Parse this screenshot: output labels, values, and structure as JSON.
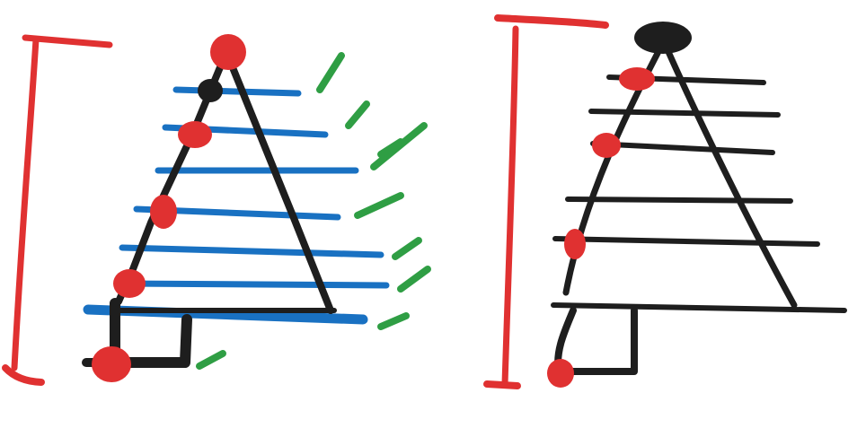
{
  "drawing": {
    "description": "",
    "colors": {
      "red": "#e03131",
      "black": "#1e1e1e",
      "blue": "#1971c2",
      "green": "#2f9e44",
      "background": "#ffffff"
    },
    "left_sketch": {
      "bracket": "red",
      "tree_outline": "black",
      "rungs": "blue",
      "motion_marks": "green",
      "dots": "red"
    },
    "right_sketch": {
      "bracket": "red",
      "tree_outline": "black",
      "rungs": "black",
      "dots": "red"
    }
  }
}
